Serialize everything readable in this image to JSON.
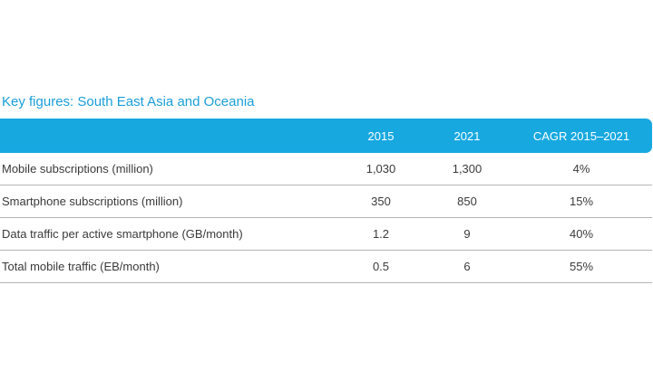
{
  "title": "Key figures: South East Asia and Oceania",
  "table": {
    "headers": [
      "",
      "2015",
      "2021",
      "CAGR 2015–2021"
    ],
    "rows": [
      [
        "Mobile subscriptions (million)",
        "1,030",
        "1,300",
        "4%"
      ],
      [
        "Smartphone subscriptions (million)",
        "350",
        "850",
        "15%"
      ],
      [
        "Data traffic per active smartphone (GB/month)",
        "1.2",
        "9",
        "40%"
      ],
      [
        "Total mobile traffic (EB/month)",
        "0.5",
        "6",
        "55%"
      ]
    ]
  },
  "colors": {
    "accent": "#17a8e0",
    "title": "#1a9ed9",
    "text": "#3a3a3a",
    "rule": "#b5b5b5"
  }
}
